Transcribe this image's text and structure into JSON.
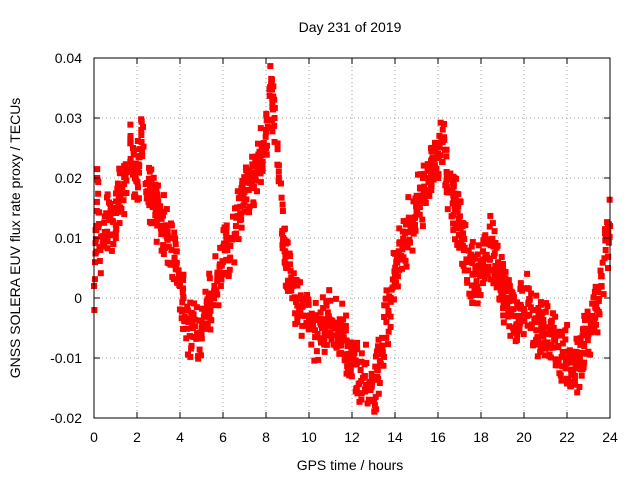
{
  "chart_data": {
    "type": "scatter",
    "title": "Day 231 of 2019",
    "xlabel": "GPS time / hours",
    "ylabel": "GNSS SOLERA EUV flux rate proxy / TECUs",
    "xlim": [
      0,
      24
    ],
    "ylim": [
      -0.02,
      0.04
    ],
    "xticks": [
      0,
      2,
      4,
      6,
      8,
      10,
      12,
      14,
      16,
      18,
      20,
      22,
      24
    ],
    "yticks": [
      -0.02,
      -0.01,
      0,
      0.01,
      0.02,
      0.03,
      0.04
    ],
    "ytick_labels": [
      "-0.02",
      "-0.01",
      "0",
      "0.01",
      "0.02",
      "0.03",
      "0.04"
    ],
    "xtick_labels": [
      "0",
      "2",
      "4",
      "6",
      "8",
      "10",
      "12",
      "14",
      "16",
      "18",
      "20",
      "22",
      "24"
    ],
    "grid": true,
    "legend": "none",
    "marker": "square",
    "color": "#ff0000",
    "series": [
      {
        "values": [
          [
            0.0,
            0.002
          ],
          [
            0.1,
            0.012
          ],
          [
            0.15,
            0.02
          ],
          [
            0.3,
            0.008
          ],
          [
            0.5,
            0.011
          ],
          [
            0.7,
            0.013
          ],
          [
            0.9,
            0.009
          ],
          [
            1.0,
            0.015
          ],
          [
            1.2,
            0.017
          ],
          [
            1.4,
            0.019
          ],
          [
            1.6,
            0.021
          ],
          [
            1.7,
            0.027
          ],
          [
            1.9,
            0.02
          ],
          [
            2.1,
            0.022
          ],
          [
            2.2,
            0.028
          ],
          [
            2.4,
            0.019
          ],
          [
            2.6,
            0.018
          ],
          [
            2.8,
            0.016
          ],
          [
            3.0,
            0.014
          ],
          [
            3.2,
            0.012
          ],
          [
            3.4,
            0.01
          ],
          [
            3.6,
            0.008
          ],
          [
            3.8,
            0.005
          ],
          [
            4.0,
            0.002
          ],
          [
            4.2,
            -0.002
          ],
          [
            4.4,
            -0.004
          ],
          [
            4.6,
            -0.005
          ],
          [
            4.8,
            -0.006
          ],
          [
            5.0,
            -0.006
          ],
          [
            5.2,
            -0.003
          ],
          [
            5.4,
            -0.001
          ],
          [
            5.6,
            0.002
          ],
          [
            5.8,
            0.004
          ],
          [
            6.0,
            0.006
          ],
          [
            6.2,
            0.008
          ],
          [
            6.4,
            0.01
          ],
          [
            6.6,
            0.012
          ],
          [
            6.8,
            0.014
          ],
          [
            7.0,
            0.016
          ],
          [
            7.2,
            0.018
          ],
          [
            7.4,
            0.02
          ],
          [
            7.6,
            0.022
          ],
          [
            7.8,
            0.025
          ],
          [
            8.0,
            0.028
          ],
          [
            8.2,
            0.035
          ],
          [
            8.4,
            0.03
          ],
          [
            8.6,
            0.02
          ],
          [
            8.8,
            0.01
          ],
          [
            9.0,
            0.005
          ],
          [
            9.2,
            0.002
          ],
          [
            9.4,
            0.0
          ],
          [
            9.6,
            -0.002
          ],
          [
            9.8,
            -0.003
          ],
          [
            10.0,
            -0.004
          ],
          [
            10.2,
            -0.005
          ],
          [
            10.4,
            -0.006
          ],
          [
            10.6,
            -0.005
          ],
          [
            10.8,
            -0.004
          ],
          [
            11.0,
            -0.004
          ],
          [
            11.2,
            -0.005
          ],
          [
            11.4,
            -0.006
          ],
          [
            11.6,
            -0.007
          ],
          [
            11.8,
            -0.008
          ],
          [
            12.0,
            -0.01
          ],
          [
            12.2,
            -0.011
          ],
          [
            12.4,
            -0.012
          ],
          [
            12.6,
            -0.013
          ],
          [
            12.8,
            -0.014
          ],
          [
            13.0,
            -0.017
          ],
          [
            13.2,
            -0.012
          ],
          [
            13.4,
            -0.008
          ],
          [
            13.6,
            -0.004
          ],
          [
            13.8,
            0.0
          ],
          [
            14.0,
            0.004
          ],
          [
            14.2,
            0.007
          ],
          [
            14.4,
            0.009
          ],
          [
            14.6,
            0.011
          ],
          [
            14.8,
            0.013
          ],
          [
            15.0,
            0.015
          ],
          [
            15.2,
            0.017
          ],
          [
            15.4,
            0.018
          ],
          [
            15.6,
            0.02
          ],
          [
            15.8,
            0.022
          ],
          [
            16.0,
            0.024
          ],
          [
            16.2,
            0.026
          ],
          [
            16.4,
            0.021
          ],
          [
            16.6,
            0.018
          ],
          [
            16.8,
            0.015
          ],
          [
            17.0,
            0.012
          ],
          [
            17.2,
            0.008
          ],
          [
            17.4,
            0.006
          ],
          [
            17.6,
            0.004
          ],
          [
            17.8,
            0.004
          ],
          [
            18.0,
            0.005
          ],
          [
            18.2,
            0.007
          ],
          [
            18.4,
            0.009
          ],
          [
            18.6,
            0.007
          ],
          [
            18.8,
            0.004
          ],
          [
            19.0,
            0.002
          ],
          [
            19.2,
            0.0
          ],
          [
            19.4,
            -0.002
          ],
          [
            19.6,
            -0.003
          ],
          [
            19.8,
            -0.003
          ],
          [
            20.0,
            -0.002
          ],
          [
            20.2,
            -0.001
          ],
          [
            20.4,
            -0.002
          ],
          [
            20.6,
            -0.004
          ],
          [
            20.8,
            -0.005
          ],
          [
            21.0,
            -0.006
          ],
          [
            21.2,
            -0.006
          ],
          [
            21.4,
            -0.007
          ],
          [
            21.6,
            -0.008
          ],
          [
            21.8,
            -0.009
          ],
          [
            22.0,
            -0.01
          ],
          [
            22.2,
            -0.012
          ],
          [
            22.4,
            -0.011
          ],
          [
            22.6,
            -0.01
          ],
          [
            22.8,
            -0.008
          ],
          [
            23.0,
            -0.006
          ],
          [
            23.2,
            -0.004
          ],
          [
            23.4,
            -0.002
          ],
          [
            23.6,
            0.002
          ],
          [
            23.8,
            0.008
          ],
          [
            24.0,
            0.012
          ]
        ]
      }
    ]
  }
}
